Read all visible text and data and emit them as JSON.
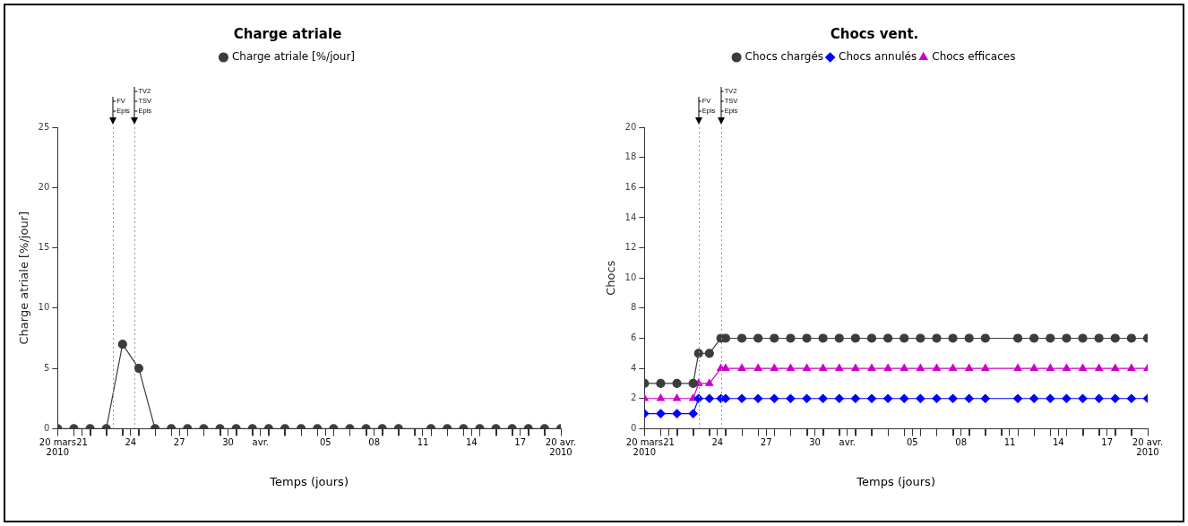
{
  "chart_data": [
    {
      "type": "line",
      "title": "Charge atriale",
      "xlabel": "Temps (jours)",
      "ylabel": "Charge atriale [%/jour]",
      "legend": "top",
      "grid": false,
      "line_style": "solid",
      "x": [
        "2010-03-20",
        "2010-03-21",
        "2010-03-22",
        "2010-03-23",
        "2010-03-24",
        "2010-03-25",
        "2010-03-26",
        "2010-03-27",
        "2010-03-28",
        "2010-03-29",
        "2010-03-30",
        "2010-03-31",
        "2010-04-01",
        "2010-04-02",
        "2010-04-03",
        "2010-04-04",
        "2010-04-05",
        "2010-04-06",
        "2010-04-07",
        "2010-04-08",
        "2010-04-09",
        "2010-04-10",
        "2010-04-12",
        "2010-04-13",
        "2010-04-14",
        "2010-04-15",
        "2010-04-16",
        "2010-04-17",
        "2010-04-18",
        "2010-04-19",
        "2010-04-20"
      ],
      "series": [
        {
          "name": "Charge atriale [%/jour]",
          "color": "#3c3c3c",
          "marker": "circle",
          "values": [
            0,
            0,
            0,
            0,
            7,
            5,
            0,
            0,
            0,
            0,
            0,
            0,
            0,
            0,
            0,
            0,
            0,
            0,
            0,
            0,
            0,
            0,
            0,
            0,
            0,
            0,
            0,
            0,
            0,
            0,
            0
          ]
        }
      ],
      "xlim": [
        "2010-03-20",
        "2010-04-20"
      ],
      "xticks": [
        {
          "value": "2010-03-20",
          "label": "20 mars 2010"
        },
        {
          "value": "2010-03-21",
          "label": null
        },
        {
          "value": "2010-03-21T12:00",
          "label": "21"
        },
        {
          "value": "2010-03-22",
          "label": null
        },
        {
          "value": "2010-03-23",
          "label": null
        },
        {
          "value": "2010-03-24",
          "label": null
        },
        {
          "value": "2010-03-24T12:00",
          "label": "24"
        },
        {
          "value": "2010-03-25",
          "label": null
        },
        {
          "value": "2010-03-26",
          "label": null
        },
        {
          "value": "2010-03-27",
          "label": null
        },
        {
          "value": "2010-03-27T12:00",
          "label": "27"
        },
        {
          "value": "2010-03-28",
          "label": null
        },
        {
          "value": "2010-03-29",
          "label": null
        },
        {
          "value": "2010-03-30",
          "label": null
        },
        {
          "value": "2010-03-30T12:00",
          "label": "30"
        },
        {
          "value": "2010-03-31",
          "label": null
        },
        {
          "value": "2010-04-01",
          "label": null
        },
        {
          "value": "2010-04-01T12:00",
          "label": "avr."
        },
        {
          "value": "2010-04-02",
          "label": null
        },
        {
          "value": "2010-04-03",
          "label": null
        },
        {
          "value": "2010-04-04",
          "label": null
        },
        {
          "value": "2010-04-05",
          "label": null
        },
        {
          "value": "2010-04-05T12:00",
          "label": "05"
        },
        {
          "value": "2010-04-06",
          "label": null
        },
        {
          "value": "2010-04-07",
          "label": null
        },
        {
          "value": "2010-04-08",
          "label": null
        },
        {
          "value": "2010-04-08T12:00",
          "label": "08"
        },
        {
          "value": "2010-04-09",
          "label": null
        },
        {
          "value": "2010-04-10",
          "label": null
        },
        {
          "value": "2010-04-11",
          "label": null
        },
        {
          "value": "2010-04-11T12:00",
          "label": "11"
        },
        {
          "value": "2010-04-12",
          "label": null
        },
        {
          "value": "2010-04-13",
          "label": null
        },
        {
          "value": "2010-04-14",
          "label": null
        },
        {
          "value": "2010-04-14T12:00",
          "label": "14"
        },
        {
          "value": "2010-04-15",
          "label": null
        },
        {
          "value": "2010-04-16",
          "label": null
        },
        {
          "value": "2010-04-17",
          "label": null
        },
        {
          "value": "2010-04-17T12:00",
          "label": "17"
        },
        {
          "value": "2010-04-18",
          "label": null
        },
        {
          "value": "2010-04-19",
          "label": null
        },
        {
          "value": "2010-04-20",
          "label": "20 avr. 2010"
        }
      ],
      "ylim": [
        0,
        25
      ],
      "yticks": [
        0,
        5,
        10,
        15,
        20,
        25
      ],
      "ref_lines": [
        {
          "axis": "x",
          "value": "2010-03-23T10:00",
          "label": "FV\nEpis"
        },
        {
          "axis": "x",
          "value": "2010-03-24T18:00",
          "label": "TV2\nTSV\nEpis"
        }
      ]
    },
    {
      "type": "line",
      "title": "Chocs vent.",
      "xlabel": "Temps (jours)",
      "ylabel": "Chocs",
      "legend": "top",
      "grid": false,
      "line_style": "solid",
      "x": [
        "2010-03-20",
        "2010-03-21",
        "2010-03-22",
        "2010-03-23",
        "2010-03-23T08:00",
        "2010-03-24",
        "2010-03-24T17:00",
        "2010-03-25",
        "2010-03-26",
        "2010-03-27",
        "2010-03-28",
        "2010-03-29",
        "2010-03-30",
        "2010-03-31",
        "2010-04-01",
        "2010-04-02",
        "2010-04-03",
        "2010-04-04",
        "2010-04-05",
        "2010-04-06",
        "2010-04-07",
        "2010-04-08",
        "2010-04-09",
        "2010-04-10",
        "2010-04-12",
        "2010-04-13",
        "2010-04-14",
        "2010-04-15",
        "2010-04-16",
        "2010-04-17",
        "2010-04-18",
        "2010-04-19",
        "2010-04-20"
      ],
      "series": [
        {
          "name": "Chocs chargés",
          "color": "#3c3c3c",
          "marker": "circle",
          "values": [
            3,
            3,
            3,
            3,
            5,
            5,
            6,
            6,
            6,
            6,
            6,
            6,
            6,
            6,
            6,
            6,
            6,
            6,
            6,
            6,
            6,
            6,
            6,
            6,
            6,
            6,
            6,
            6,
            6,
            6,
            6,
            6,
            6
          ]
        },
        {
          "name": "Chocs annulés",
          "color": "#0000ff",
          "marker": "diamond",
          "values": [
            1,
            1,
            1,
            1,
            2,
            2,
            2,
            2,
            2,
            2,
            2,
            2,
            2,
            2,
            2,
            2,
            2,
            2,
            2,
            2,
            2,
            2,
            2,
            2,
            2,
            2,
            2,
            2,
            2,
            2,
            2,
            2,
            2
          ]
        },
        {
          "name": "Chocs efficaces",
          "color": "#cc00cc",
          "marker": "triangle",
          "values": [
            2,
            2,
            2,
            2,
            3,
            3,
            4,
            4,
            4,
            4,
            4,
            4,
            4,
            4,
            4,
            4,
            4,
            4,
            4,
            4,
            4,
            4,
            4,
            4,
            4,
            4,
            4,
            4,
            4,
            4,
            4,
            4,
            4
          ]
        }
      ],
      "xlim": [
        "2010-03-20",
        "2010-04-20"
      ],
      "xticks": [
        {
          "value": "2010-03-20",
          "label": "20 mars 2010"
        },
        {
          "value": "2010-03-21",
          "label": null
        },
        {
          "value": "2010-03-21T12:00",
          "label": "21"
        },
        {
          "value": "2010-03-22",
          "label": null
        },
        {
          "value": "2010-03-23",
          "label": null
        },
        {
          "value": "2010-03-24",
          "label": null
        },
        {
          "value": "2010-03-24T12:00",
          "label": "24"
        },
        {
          "value": "2010-03-25",
          "label": null
        },
        {
          "value": "2010-03-26",
          "label": null
        },
        {
          "value": "2010-03-27",
          "label": null
        },
        {
          "value": "2010-03-27T12:00",
          "label": "27"
        },
        {
          "value": "2010-03-28",
          "label": null
        },
        {
          "value": "2010-03-29",
          "label": null
        },
        {
          "value": "2010-03-30",
          "label": null
        },
        {
          "value": "2010-03-30T12:00",
          "label": "30"
        },
        {
          "value": "2010-03-31",
          "label": null
        },
        {
          "value": "2010-04-01",
          "label": null
        },
        {
          "value": "2010-04-01T12:00",
          "label": "avr."
        },
        {
          "value": "2010-04-02",
          "label": null
        },
        {
          "value": "2010-04-03",
          "label": null
        },
        {
          "value": "2010-04-04",
          "label": null
        },
        {
          "value": "2010-04-05",
          "label": null
        },
        {
          "value": "2010-04-05T12:00",
          "label": "05"
        },
        {
          "value": "2010-04-06",
          "label": null
        },
        {
          "value": "2010-04-07",
          "label": null
        },
        {
          "value": "2010-04-08",
          "label": null
        },
        {
          "value": "2010-04-08T12:00",
          "label": "08"
        },
        {
          "value": "2010-04-09",
          "label": null
        },
        {
          "value": "2010-04-10",
          "label": null
        },
        {
          "value": "2010-04-11",
          "label": null
        },
        {
          "value": "2010-04-11T12:00",
          "label": "11"
        },
        {
          "value": "2010-04-12",
          "label": null
        },
        {
          "value": "2010-04-13",
          "label": null
        },
        {
          "value": "2010-04-14",
          "label": null
        },
        {
          "value": "2010-04-14T12:00",
          "label": "14"
        },
        {
          "value": "2010-04-15",
          "label": null
        },
        {
          "value": "2010-04-16",
          "label": null
        },
        {
          "value": "2010-04-17",
          "label": null
        },
        {
          "value": "2010-04-17T12:00",
          "label": "17"
        },
        {
          "value": "2010-04-18",
          "label": null
        },
        {
          "value": "2010-04-19",
          "label": null
        },
        {
          "value": "2010-04-20",
          "label": "20 avr. 2010"
        }
      ],
      "ylim": [
        0,
        20
      ],
      "yticks": [
        0,
        2,
        4,
        6,
        8,
        10,
        12,
        14,
        16,
        18,
        20
      ],
      "ref_lines": [
        {
          "axis": "x",
          "value": "2010-03-23T08:00",
          "label": "FV\nEpis"
        },
        {
          "axis": "x",
          "value": "2010-03-24T17:00",
          "label": "TV2\nTSV\nEpis"
        }
      ]
    }
  ]
}
